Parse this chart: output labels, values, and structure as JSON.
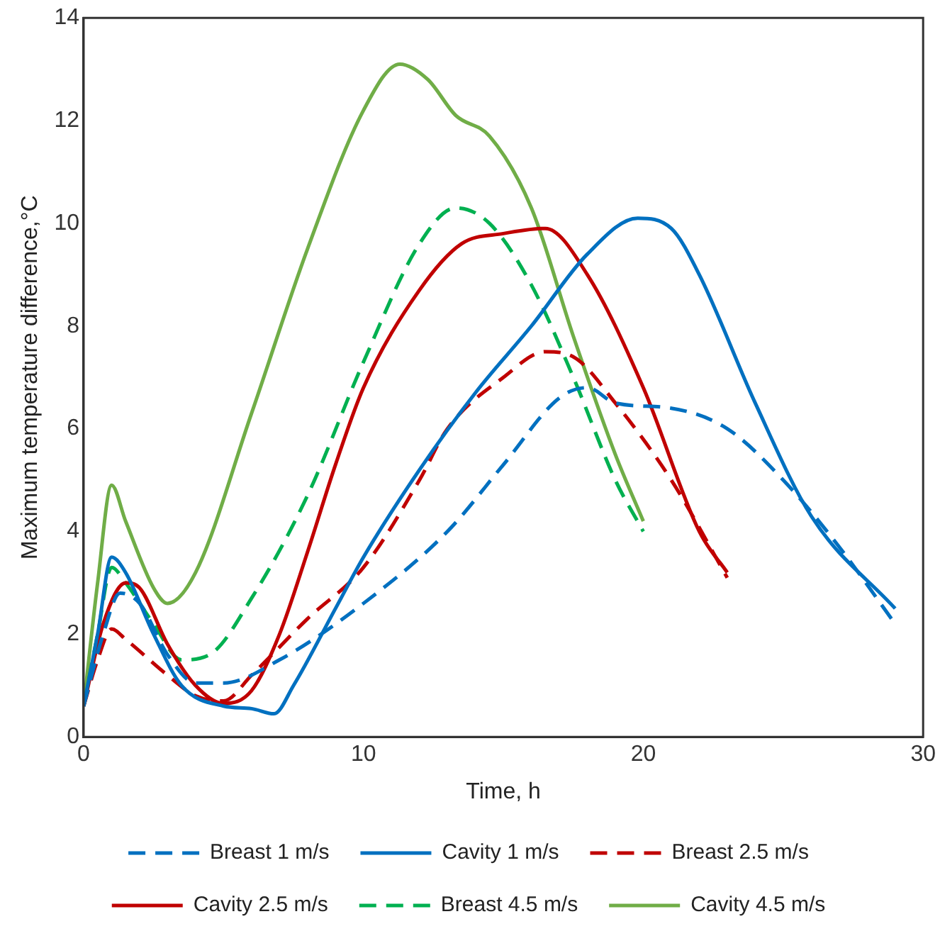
{
  "chart_data": {
    "type": "line",
    "xlabel": "Time, h",
    "ylabel": "Maximum temperature difference,°C",
    "xlim": [
      0,
      30
    ],
    "xticks": [
      0,
      10,
      20,
      30
    ],
    "ylim": [
      0,
      14
    ],
    "yticks": [
      0,
      2,
      4,
      6,
      8,
      10,
      12,
      14
    ],
    "grid": false,
    "legend": "bottom",
    "marker": "none",
    "series": [
      {
        "name": "Breast 1 m/s",
        "color": "#0070c0",
        "line_style": "dashed",
        "x": [
          0,
          0.7,
          1.3,
          2,
          3,
          4,
          5,
          7,
          10,
          13,
          15,
          17,
          18,
          19,
          21,
          23,
          25,
          27,
          29
        ],
        "values": [
          0.6,
          2,
          2.8,
          2.6,
          1.6,
          1.05,
          1.05,
          1.5,
          2.6,
          4,
          5.3,
          6.6,
          6.8,
          6.5,
          6.4,
          6,
          5,
          3.7,
          2.2
        ]
      },
      {
        "name": "Cavity 1 m/s",
        "color": "#0070c0",
        "line_style": "solid",
        "x": [
          0,
          0.5,
          1,
          1.5,
          2.5,
          3.5,
          5,
          6,
          6.8,
          7.5,
          9,
          10,
          12,
          14,
          16,
          18,
          19.8,
          21,
          22,
          24,
          26,
          29
        ],
        "values": [
          0.6,
          2,
          3.5,
          3.2,
          2,
          1,
          0.6,
          0.55,
          0.45,
          1,
          2.5,
          3.5,
          5.2,
          6.7,
          8,
          9.4,
          10.1,
          9.9,
          9,
          6.5,
          4.3,
          2.5
        ]
      },
      {
        "name": "Breast 2.5 m/s",
        "color": "#c00000",
        "line_style": "dashed",
        "x": [
          0,
          0.5,
          1,
          1.5,
          3,
          4,
          5,
          6,
          8,
          10,
          12,
          13,
          15,
          16.5,
          17.5,
          19,
          21,
          23
        ],
        "values": [
          0.6,
          1.5,
          2.1,
          1.9,
          1.2,
          0.8,
          0.7,
          1.2,
          2.3,
          3.3,
          5,
          6,
          7,
          7.5,
          7.4,
          6.5,
          5,
          3.1
        ]
      },
      {
        "name": "Cavity 2.5 m/s",
        "color": "#c00000",
        "line_style": "solid",
        "x": [
          0,
          0.7,
          1.5,
          2,
          3,
          4,
          5,
          6,
          7,
          8,
          9,
          10,
          12,
          13.5,
          15,
          16.5,
          18,
          20,
          22,
          23
        ],
        "values": [
          0.6,
          2.2,
          3,
          2.9,
          1.8,
          1,
          0.65,
          0.9,
          2,
          3.6,
          5.3,
          6.8,
          8.7,
          9.6,
          9.8,
          9.9,
          9,
          6.8,
          4,
          3.2
        ]
      },
      {
        "name": "Breast 4.5 m/s",
        "color": "#00b050",
        "line_style": "dashed",
        "x": [
          0,
          0.5,
          1,
          1.5,
          2.5,
          3.5,
          4.5,
          6,
          8,
          10,
          12,
          13.3,
          14.5,
          16,
          17.5,
          19,
          20
        ],
        "values": [
          0.6,
          2,
          3.3,
          3,
          2.2,
          1.5,
          1.6,
          2.7,
          4.7,
          7.3,
          9.6,
          10.3,
          10,
          8.8,
          7,
          5,
          4
        ]
      },
      {
        "name": "Cavity 4.5 m/s",
        "color": "#70ad47",
        "line_style": "solid",
        "x": [
          0,
          0.5,
          1,
          1.5,
          2.5,
          3,
          4,
          6,
          8,
          10,
          11.3,
          12.3,
          13.3,
          14.5,
          16,
          17.5,
          19,
          20
        ],
        "values": [
          0.6,
          3,
          4.9,
          4.2,
          2.9,
          2.6,
          3.2,
          6.3,
          9.5,
          12.2,
          13.1,
          12.8,
          12.1,
          11.7,
          10.3,
          7.8,
          5.5,
          4.2
        ]
      }
    ]
  }
}
